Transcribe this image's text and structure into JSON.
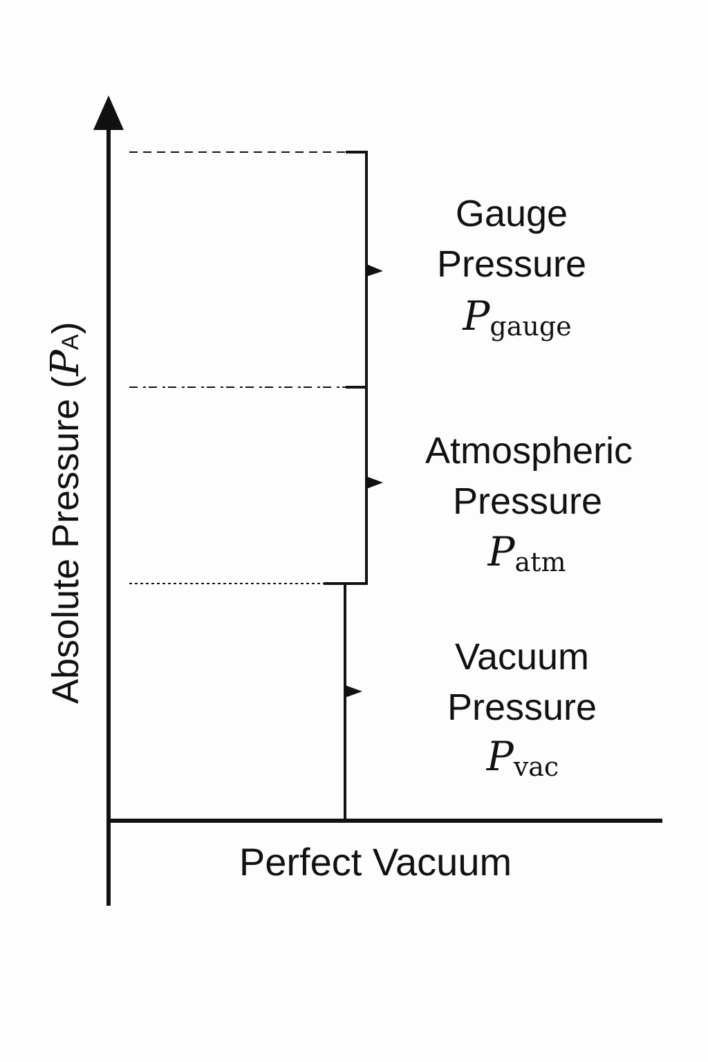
{
  "axis": {
    "y_label_main": "Absolute Pressure (",
    "y_label_symbol": "P",
    "y_label_subscript": "A",
    "y_label_close": ")",
    "x_label": "Perfect Vacuum"
  },
  "regions": [
    {
      "id": "gauge",
      "line1": "Gauge",
      "line2": "Pressure",
      "symbol": "P",
      "subscript": "gauge"
    },
    {
      "id": "atm",
      "line1": "Atmospheric",
      "line2": "Pressure",
      "symbol": "P",
      "subscript": "atm"
    },
    {
      "id": "vac",
      "line1": "Vacuum",
      "line2": "Pressure",
      "symbol": "P",
      "subscript": "vac"
    }
  ],
  "colors": {
    "ink": "#111111",
    "background": "#fdfdfd"
  }
}
